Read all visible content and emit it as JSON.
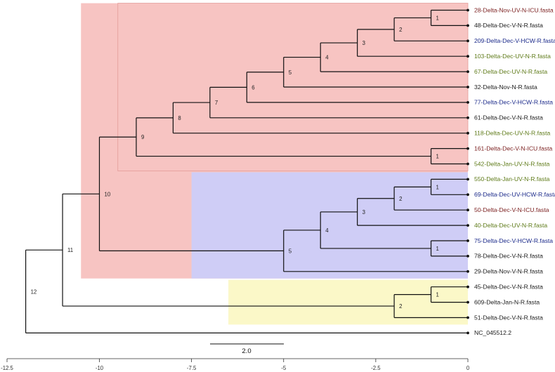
{
  "colors": {
    "red_clade": "#f7c4c2",
    "red_clade_border": "#e39c98",
    "blue_clade": "#cfcdf6",
    "yellow_clade": "#fbf8c8",
    "label_maroon": "#7a1e1e",
    "label_black": "#1a1a1a",
    "label_navy": "#1b2a8a",
    "label_olive": "#5e7a18"
  },
  "tree": {
    "leaves": [
      {
        "name": "28-Delta-Nov-UV-N-ICU.fasta",
        "color": "#7a1e1e"
      },
      {
        "name": "48-Delta-Dec-V-N-R.fasta",
        "color": "#1a1a1a"
      },
      {
        "name": "209-Delta-Dec-V-HCW-R.fasta",
        "color": "#1b2a8a"
      },
      {
        "name": "103-Delta-Dec-UV-N-R.fasta",
        "color": "#5e7a18"
      },
      {
        "name": "67-Delta-Dec-UV-N-R.fasta",
        "color": "#5e7a18"
      },
      {
        "name": "32-Delta-Nov-N-R.fasta",
        "color": "#1a1a1a"
      },
      {
        "name": "77-Delta-Dec-V-HCW-R.fasta",
        "color": "#1b2a8a"
      },
      {
        "name": "61-Delta-Dec-V-N-R.fasta",
        "color": "#1a1a1a"
      },
      {
        "name": "118-Delta-Dec-UV-N-R.fasta",
        "color": "#5e7a18"
      },
      {
        "name": "161-Delta-Dec-V-N-ICU.fasta",
        "color": "#7a1e1e"
      },
      {
        "name": "542-Delta-Jan-UV-N-R.fasta",
        "color": "#5e7a18"
      },
      {
        "name": "550-Delta-Jan-UV-N-R.fasta",
        "color": "#5e7a18"
      },
      {
        "name": "69-Delta-Dec-UV-HCW-R.fasta",
        "color": "#1b2a8a"
      },
      {
        "name": "50-Delta-Dec-V-N-ICU.fasta",
        "color": "#7a1e1e"
      },
      {
        "name": "40-Delta-Dec-UV-N-R.fasta",
        "color": "#5e7a18"
      },
      {
        "name": "75-Delta-Dec-V-HCW-R.fasta",
        "color": "#1b2a8a"
      },
      {
        "name": "78-Delta-Dec-V-N-R.fasta",
        "color": "#1a1a1a"
      },
      {
        "name": "29-Delta-Nov-V-N-R.fasta",
        "color": "#1a1a1a"
      },
      {
        "name": "45-Delta-Dec-V-N-R.fasta",
        "color": "#1a1a1a"
      },
      {
        "name": "609-Delta-Jan-N-R.fasta",
        "color": "#1a1a1a"
      },
      {
        "name": "51-Delta-Dec-V-N-R.fasta",
        "color": "#1a1a1a"
      },
      {
        "name": "NC_045512.2",
        "color": "#1a1a1a"
      }
    ],
    "internal_nodes": [
      {
        "label": "1",
        "height": -1,
        "children": [
          0,
          1
        ]
      },
      {
        "label": "2",
        "height": -2,
        "children": [
          "n0",
          2
        ]
      },
      {
        "label": "3",
        "height": -3,
        "children": [
          "n1",
          3
        ]
      },
      {
        "label": "4",
        "height": -4,
        "children": [
          "n2",
          4
        ]
      },
      {
        "label": "5",
        "height": -5,
        "children": [
          "n3",
          5
        ]
      },
      {
        "label": "6",
        "height": -6,
        "children": [
          "n4",
          6
        ]
      },
      {
        "label": "7",
        "height": -7,
        "children": [
          "n5",
          7
        ]
      },
      {
        "label": "8",
        "height": -8,
        "children": [
          "n6",
          8
        ]
      },
      {
        "label": "1",
        "height": -1,
        "children": [
          9,
          10
        ]
      },
      {
        "label": "9",
        "height": -9,
        "children": [
          "n7",
          "n8"
        ]
      },
      {
        "label": "1",
        "height": -1,
        "children": [
          11,
          12
        ]
      },
      {
        "label": "2",
        "height": -2,
        "children": [
          "n10",
          13
        ]
      },
      {
        "label": "3",
        "height": -3,
        "children": [
          "n11",
          14
        ]
      },
      {
        "label": "1",
        "height": -1,
        "children": [
          15,
          16
        ]
      },
      {
        "label": "4",
        "height": -4,
        "children": [
          "n12",
          "n13"
        ]
      },
      {
        "label": "5",
        "height": -5,
        "children": [
          "n14",
          17
        ]
      },
      {
        "label": "10",
        "height": -10,
        "children": [
          "n9",
          "n15"
        ]
      },
      {
        "label": "1",
        "height": -1,
        "children": [
          18,
          19
        ]
      },
      {
        "label": "2",
        "height": -2,
        "children": [
          "n17",
          20
        ]
      },
      {
        "label": "11",
        "height": -11,
        "children": [
          "n16",
          "n18"
        ]
      },
      {
        "label": "12",
        "height": -12,
        "children": [
          "n19",
          21
        ]
      }
    ],
    "clade_regions": [
      {
        "name": "red",
        "from_height": -10.5,
        "first_leaf": 0,
        "last_leaf": 17
      },
      {
        "name": "red-inner",
        "from_height": -9.5,
        "first_leaf": 0,
        "last_leaf": 10
      },
      {
        "name": "blue",
        "from_height": -7.5,
        "first_leaf": 11,
        "last_leaf": 17
      },
      {
        "name": "yellow",
        "from_height": -6.5,
        "first_leaf": 18,
        "last_leaf": 20
      }
    ]
  },
  "scale_bar": {
    "label": "2.0",
    "length": 2.0
  },
  "axis": {
    "min": -12.5,
    "max": 0,
    "ticks": [
      -12.5,
      -10,
      -7.5,
      -5,
      -2.5,
      0
    ],
    "tick_labels": [
      "-12.5",
      "-10",
      "-7.5",
      "-5",
      "-2.5",
      "0"
    ]
  }
}
